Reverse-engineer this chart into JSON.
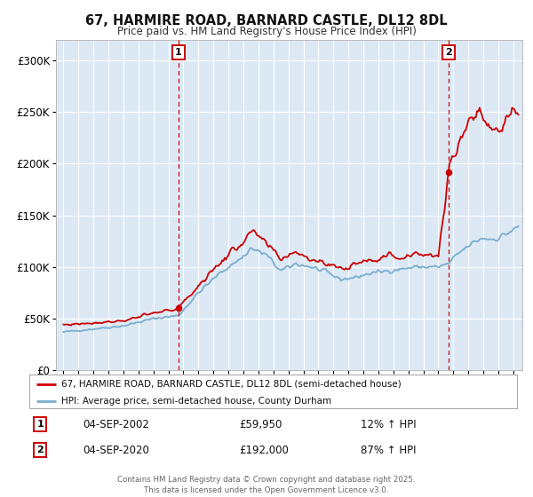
{
  "title_line1": "67, HARMIRE ROAD, BARNARD CASTLE, DL12 8DL",
  "title_line2": "Price paid vs. HM Land Registry's House Price Index (HPI)",
  "fig_bg_color": "#ffffff",
  "plot_bg_color": "#dce9f5",
  "red_line_color": "#cc0000",
  "blue_line_color": "#7aadcf",
  "grid_color": "#ffffff",
  "dashed_line_color": "#cc0000",
  "sale1_x": 2002.67,
  "sale1_y": 59950,
  "sale2_x": 2020.67,
  "sale2_y": 192000,
  "ylim": [
    0,
    320000
  ],
  "xlim_start": 1994.5,
  "xlim_end": 2025.6,
  "legend_label_red": "67, HARMIRE ROAD, BARNARD CASTLE, DL12 8DL (semi-detached house)",
  "legend_label_blue": "HPI: Average price, semi-detached house, County Durham",
  "annotation1_label": "1",
  "annotation1_date": "04-SEP-2002",
  "annotation1_price": "£59,950",
  "annotation1_hpi": "12% ↑ HPI",
  "annotation2_label": "2",
  "annotation2_date": "04-SEP-2020",
  "annotation2_price": "£192,000",
  "annotation2_hpi": "87% ↑ HPI",
  "footer": "Contains HM Land Registry data © Crown copyright and database right 2025.\nThis data is licensed under the Open Government Licence v3.0."
}
